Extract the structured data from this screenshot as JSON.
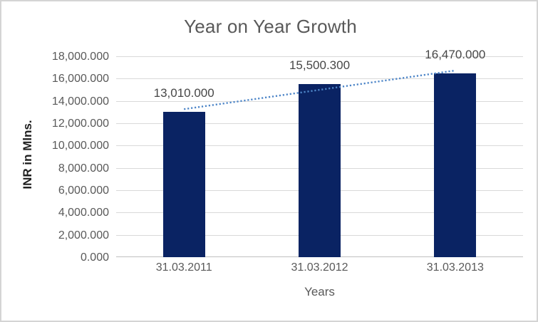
{
  "chart_data": {
    "type": "bar",
    "title": "Year on Year Growth",
    "xlabel": "Years",
    "ylabel": "INR in Mlns.",
    "categories": [
      "31.03.2011",
      "31.03.2012",
      "31.03.2013"
    ],
    "values": [
      13010.0,
      15500.3,
      16470.0
    ],
    "data_labels": [
      "13,010.000",
      "15,500.300",
      "16,470.000"
    ],
    "ylim": [
      0,
      18000
    ],
    "ytick_step": 2000,
    "yticks": [
      0,
      2000,
      4000,
      6000,
      8000,
      10000,
      12000,
      14000,
      16000,
      18000
    ],
    "ytick_labels": [
      "0.000",
      "2,000.000",
      "4,000.000",
      "6,000.000",
      "8,000.000",
      "10,000.000",
      "12,000.000",
      "14,000.000",
      "16,000.000",
      "18,000.000"
    ],
    "grid": "horizontal-major",
    "legend": "none",
    "trendline": {
      "type": "linear",
      "style": "dotted",
      "endpoint_values": [
        13263.4,
        16723.4
      ]
    },
    "colors": {
      "bar": "#0a2363",
      "trendline": "#4e86c8",
      "gridline": "#d9d9d9",
      "axis_line": "#bfbfbf",
      "title_text": "#595959",
      "tick_text": "#595959",
      "data_label_text": "#474747",
      "y_axis_title_text": "#1f1f1f"
    }
  }
}
